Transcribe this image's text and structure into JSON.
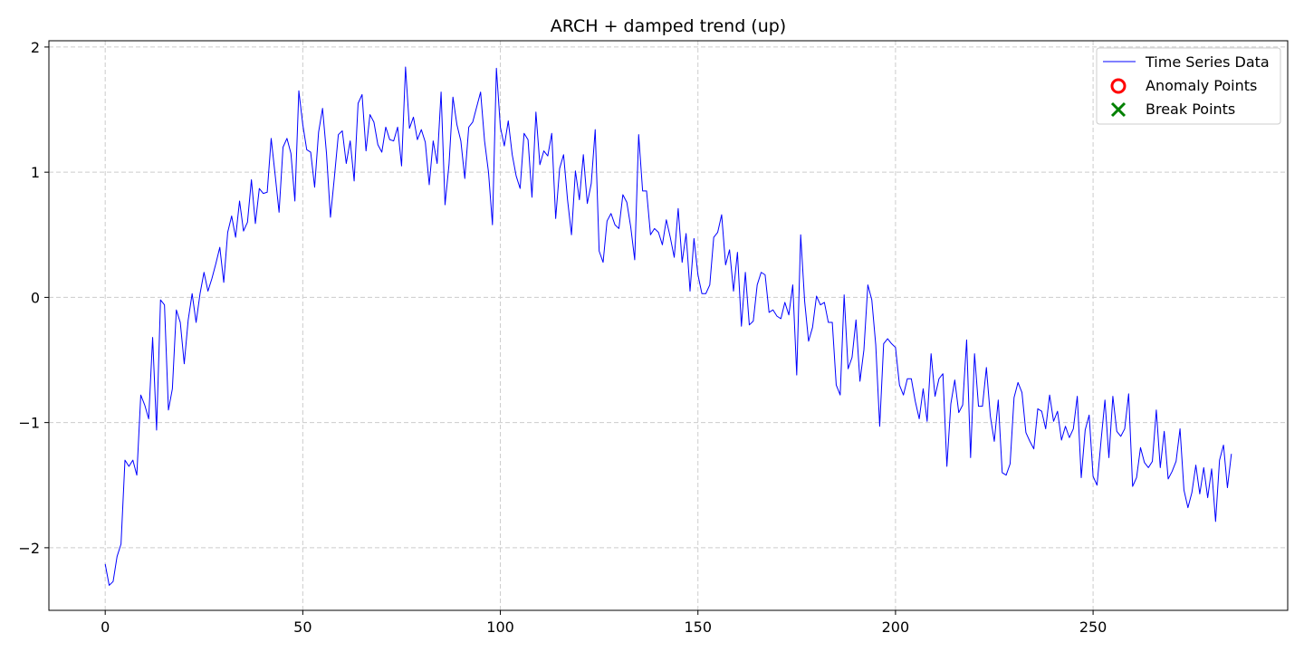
{
  "chart_data": {
    "type": "line",
    "title": "ARCH + damped trend (up)",
    "xlabel": "",
    "ylabel": "",
    "xlim": [
      -14.25,
      299.25
    ],
    "ylim": [
      -2.5,
      2.05
    ],
    "x_ticks": [
      0,
      50,
      100,
      150,
      200,
      250
    ],
    "y_ticks": [
      -2,
      -1,
      0,
      1,
      2
    ],
    "x_tick_labels": [
      "0",
      "50",
      "100",
      "150",
      "200",
      "250"
    ],
    "y_tick_labels": [
      "−2",
      "−1",
      "0",
      "1",
      "2"
    ],
    "grid": true,
    "legend_position": "top-right",
    "series": [
      {
        "name": "Time Series Data",
        "color": "#0000ff",
        "x_start": 0,
        "x_step": 1,
        "values": [
          -2.13,
          -2.3,
          -2.27,
          -2.07,
          -1.97,
          -1.3,
          -1.35,
          -1.3,
          -1.42,
          -0.78,
          -0.86,
          -0.97,
          -0.32,
          -1.06,
          -0.02,
          -0.06,
          -0.9,
          -0.73,
          -0.1,
          -0.2,
          -0.53,
          -0.18,
          0.03,
          -0.2,
          0.03,
          0.2,
          0.05,
          0.15,
          0.27,
          0.4,
          0.12,
          0.52,
          0.65,
          0.48,
          0.77,
          0.53,
          0.6,
          0.94,
          0.59,
          0.87,
          0.83,
          0.84,
          1.27,
          0.98,
          0.68,
          1.2,
          1.27,
          1.15,
          0.77,
          1.65,
          1.38,
          1.18,
          1.16,
          0.88,
          1.32,
          1.51,
          1.15,
          0.64,
          0.96,
          1.3,
          1.33,
          1.07,
          1.25,
          0.93,
          1.55,
          1.62,
          1.17,
          1.46,
          1.4,
          1.22,
          1.16,
          1.36,
          1.26,
          1.25,
          1.36,
          1.05,
          1.84,
          1.35,
          1.44,
          1.26,
          1.34,
          1.24,
          0.9,
          1.25,
          1.07,
          1.64,
          0.74,
          1.06,
          1.6,
          1.38,
          1.25,
          0.95,
          1.36,
          1.4,
          1.52,
          1.64,
          1.25,
          1.0,
          0.58,
          1.83,
          1.36,
          1.21,
          1.41,
          1.14,
          0.97,
          0.87,
          1.31,
          1.26,
          0.8,
          1.48,
          1.06,
          1.17,
          1.13,
          1.31,
          0.63,
          1.03,
          1.14,
          0.78,
          0.5,
          1.01,
          0.78,
          1.14,
          0.75,
          0.91,
          1.34,
          0.37,
          0.28,
          0.61,
          0.67,
          0.58,
          0.55,
          0.82,
          0.76,
          0.56,
          0.3,
          1.3,
          0.85,
          0.85,
          0.5,
          0.55,
          0.52,
          0.42,
          0.62,
          0.48,
          0.32,
          0.71,
          0.28,
          0.51,
          0.05,
          0.47,
          0.18,
          0.03,
          0.03,
          0.1,
          0.48,
          0.52,
          0.66,
          0.26,
          0.38,
          0.05,
          0.36,
          -0.23,
          0.2,
          -0.22,
          -0.19,
          0.1,
          0.2,
          0.18,
          -0.12,
          -0.1,
          -0.15,
          -0.17,
          -0.04,
          -0.14,
          0.1,
          -0.62,
          0.5,
          -0.03,
          -0.35,
          -0.24,
          0.01,
          -0.06,
          -0.04,
          -0.2,
          -0.2,
          -0.7,
          -0.78,
          0.02,
          -0.57,
          -0.48,
          -0.18,
          -0.67,
          -0.42,
          0.1,
          -0.02,
          -0.38,
          -1.03,
          -0.37,
          -0.33,
          -0.37,
          -0.4,
          -0.7,
          -0.78,
          -0.65,
          -0.65,
          -0.83,
          -0.97,
          -0.73,
          -0.99,
          -0.45,
          -0.79,
          -0.65,
          -0.61,
          -1.35,
          -0.85,
          -0.66,
          -0.92,
          -0.86,
          -0.34,
          -1.28,
          -0.45,
          -0.87,
          -0.87,
          -0.56,
          -0.95,
          -1.15,
          -0.82,
          -1.4,
          -1.42,
          -1.33,
          -0.8,
          -0.68,
          -0.76,
          -1.08,
          -1.15,
          -1.21,
          -0.89,
          -0.91,
          -1.05,
          -0.78,
          -0.99,
          -0.91,
          -1.14,
          -1.03,
          -1.12,
          -1.05,
          -0.79,
          -1.44,
          -1.06,
          -0.94,
          -1.43,
          -1.5,
          -1.15,
          -0.82,
          -1.28,
          -0.79,
          -1.07,
          -1.11,
          -1.05,
          -0.77,
          -1.51,
          -1.44,
          -1.2,
          -1.32,
          -1.36,
          -1.31,
          -0.9,
          -1.36,
          -1.07,
          -1.45,
          -1.39,
          -1.31,
          -1.05,
          -1.54,
          -1.68,
          -1.56,
          -1.34,
          -1.57,
          -1.36,
          -1.6,
          -1.37,
          -1.79,
          -1.3,
          -1.18,
          -1.52,
          -1.25
        ]
      }
    ],
    "legend": [
      {
        "label": "Time Series Data",
        "marker": "line",
        "color": "#0000ff"
      },
      {
        "label": "Anomaly Points",
        "marker": "circle",
        "color": "#ff0000"
      },
      {
        "label": "Break Points",
        "marker": "x",
        "color": "#008000"
      }
    ]
  }
}
